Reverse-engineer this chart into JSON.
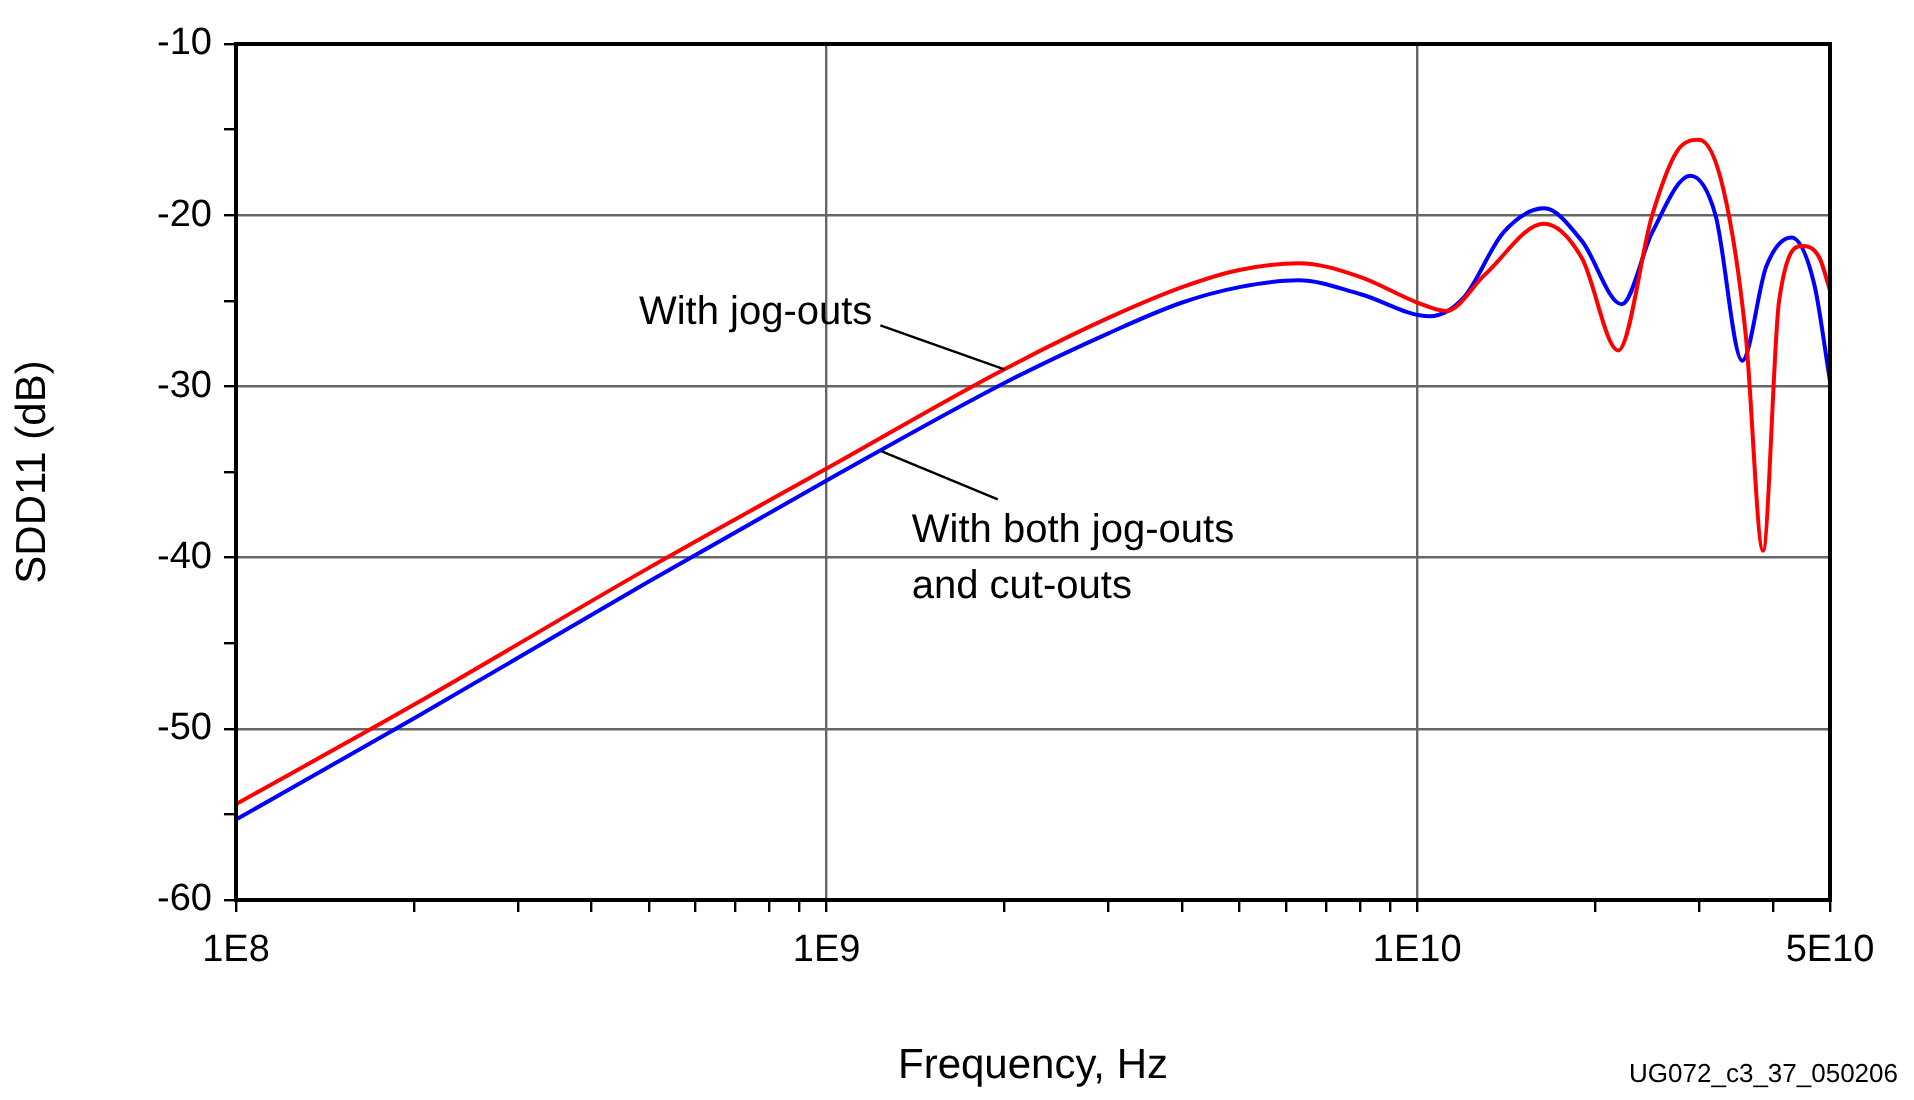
{
  "chart_data": {
    "type": "line",
    "xlabel": "Frequency, Hz",
    "ylabel": "SDD11 (dB)",
    "log": "x",
    "grid": true,
    "legend": false,
    "marker": "none",
    "line_style": "solid",
    "xlim": [
      100000000,
      50000000000
    ],
    "xticks": [
      {
        "value": 100000000,
        "label": "1E8"
      },
      {
        "value": 200000000,
        "label": null
      },
      {
        "value": 300000000,
        "label": null
      },
      {
        "value": 400000000,
        "label": null
      },
      {
        "value": 500000000,
        "label": null
      },
      {
        "value": 600000000,
        "label": null
      },
      {
        "value": 700000000,
        "label": null
      },
      {
        "value": 800000000,
        "label": null
      },
      {
        "value": 900000000,
        "label": null
      },
      {
        "value": 1000000000,
        "label": "1E9"
      },
      {
        "value": 2000000000,
        "label": null
      },
      {
        "value": 3000000000,
        "label": null
      },
      {
        "value": 4000000000,
        "label": null
      },
      {
        "value": 5000000000,
        "label": null
      },
      {
        "value": 6000000000,
        "label": null
      },
      {
        "value": 7000000000,
        "label": null
      },
      {
        "value": 8000000000,
        "label": null
      },
      {
        "value": 9000000000,
        "label": null
      },
      {
        "value": 10000000000,
        "label": "1E10"
      },
      {
        "value": 20000000000,
        "label": null
      },
      {
        "value": 30000000000,
        "label": null
      },
      {
        "value": 40000000000,
        "label": null
      },
      {
        "value": 50000000000,
        "label": "5E10"
      }
    ],
    "ylim": [
      -60,
      -10
    ],
    "yticks": [
      -60,
      {
        "value": -55,
        "label": null
      },
      -50,
      {
        "value": -45,
        "label": null
      },
      -40,
      {
        "value": -35,
        "label": null
      },
      -30,
      {
        "value": -25,
        "label": null
      },
      -20,
      {
        "value": -15,
        "label": null
      },
      -10
    ],
    "series": [
      {
        "color": "#ff0000",
        "x": [
          100000000,
          200000000,
          500000000,
          1000000000,
          2000000000,
          3000000000,
          4000000000,
          5000000000,
          6300000000,
          8000000000,
          10000000000,
          11200000000,
          13000000000,
          16400000000,
          19000000000,
          21900000000,
          25000000000,
          27500000000,
          30000000000,
          33000000000,
          36000000000,
          38500000000,
          41000000000,
          45000000000,
          48000000000,
          50000000000
        ],
        "values": [
          -54.4,
          -48.6,
          -40.6,
          -34.8,
          -29.0,
          -26.0,
          -24.2,
          -23.2,
          -22.8,
          -23.6,
          -25.1,
          -25.6,
          -23.5,
          -20.5,
          -22.5,
          -27.9,
          -20,
          -16.3,
          -15.6,
          -18.5,
          -27,
          -39.6,
          -25,
          -21.8,
          -22.5,
          -24.4
        ]
      },
      {
        "color": "#0000ff",
        "x": [
          100000000,
          200000000,
          500000000,
          1000000000,
          2000000000,
          3000000000,
          4000000000,
          5000000000,
          6300000000,
          8000000000,
          10500000000,
          12000000000,
          14000000000,
          16400000000,
          19000000000,
          22200000000,
          25000000000,
          29000000000,
          32000000000,
          35500000000,
          39000000000,
          43000000000,
          47000000000,
          50000000000
        ],
        "values": [
          -55.3,
          -49.4,
          -41.4,
          -35.5,
          -29.8,
          -26.9,
          -25.1,
          -24.2,
          -23.8,
          -24.6,
          -25.9,
          -24.8,
          -21,
          -19.6,
          -21.5,
          -25.2,
          -21,
          -17.7,
          -20,
          -28.5,
          -23,
          -21.3,
          -24,
          -29.7
        ]
      }
    ],
    "annotations": [
      {
        "text": "With jog-outs",
        "x": 2000000000,
        "y": -29.0
      },
      {
        "text": "With both jog-outs\nand cut-outs",
        "x": 1240000000,
        "y": -33.8
      },
      "UG072_c3_37_050206"
    ]
  }
}
